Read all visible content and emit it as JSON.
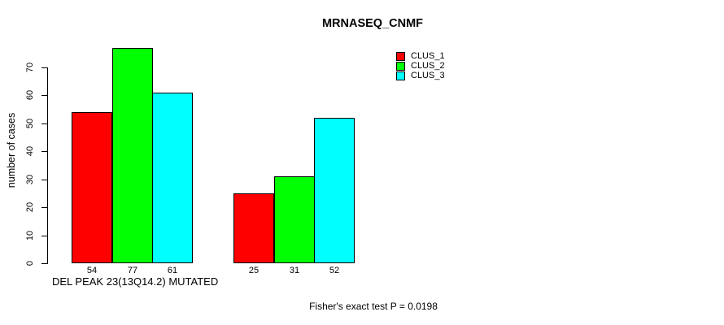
{
  "chart_data": {
    "type": "bar",
    "title": "MRNASEQ_CNMF",
    "ylabel": "number of cases",
    "xlabel": "DEL PEAK 23(13Q14.2) MUTATED",
    "annotation": "Fisher's exact test P = 0.0198",
    "categories": [
      "",
      ""
    ],
    "series": [
      {
        "name": "CLUS_1",
        "color": "#FF0000",
        "values": [
          54,
          25
        ]
      },
      {
        "name": "CLUS_2",
        "color": "#00FF00",
        "values": [
          77,
          31
        ]
      },
      {
        "name": "CLUS_3",
        "color": "#00FFFF",
        "values": [
          61,
          52
        ]
      }
    ],
    "yticks": [
      0,
      10,
      20,
      30,
      40,
      50,
      60,
      70
    ],
    "ylim": [
      0,
      77
    ],
    "grid": false,
    "legend_position": "top-right",
    "show_value_labels": true,
    "bar_border_color": "#000000",
    "background_color": "#FFFFFF",
    "text_color": "#000000"
  }
}
